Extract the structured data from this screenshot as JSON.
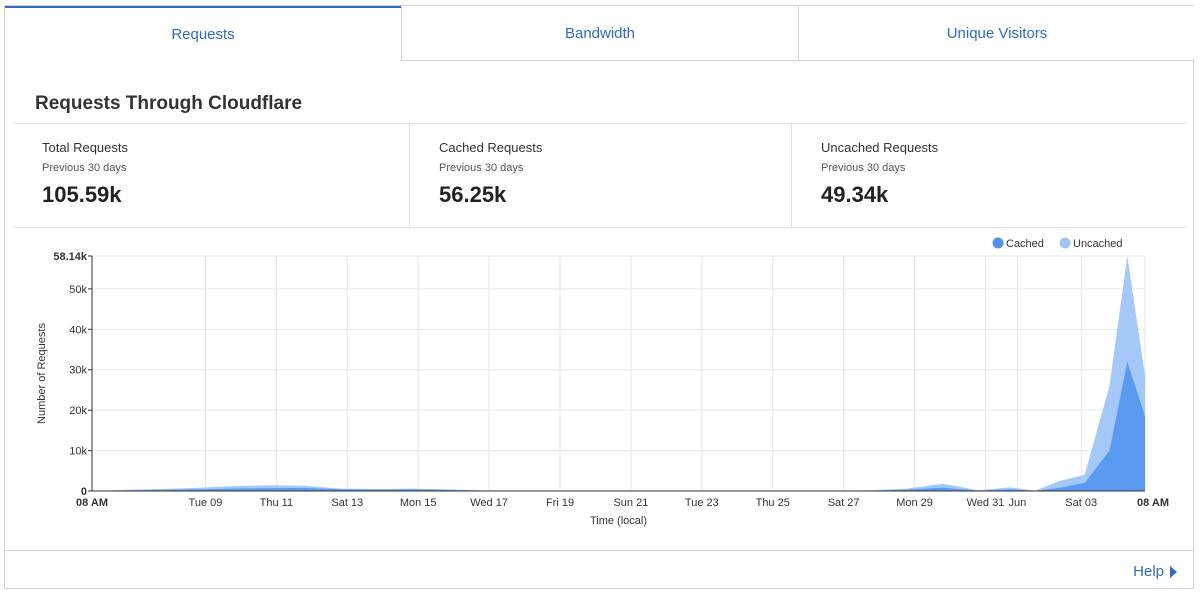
{
  "tabs": [
    {
      "label": "Requests",
      "active": true
    },
    {
      "label": "Bandwidth",
      "active": false
    },
    {
      "label": "Unique Visitors",
      "active": false
    }
  ],
  "section": {
    "title": "Requests Through Cloudflare"
  },
  "stats": [
    {
      "label": "Total Requests",
      "sub": "Previous 30 days",
      "value": "105.59k"
    },
    {
      "label": "Cached Requests",
      "sub": "Previous 30 days",
      "value": "56.25k"
    },
    {
      "label": "Uncached Requests",
      "sub": "Previous 30 days",
      "value": "49.34k"
    }
  ],
  "colors": {
    "accent": "#2f6bc1",
    "cached": "#4e92ee",
    "uncached": "#9fc5f8"
  },
  "chart_data": {
    "type": "area",
    "xlabel": "Time (local)",
    "ylabel": "Number of Requests",
    "ylim": [
      0,
      58140
    ],
    "y_ticks": [
      "0",
      "10k",
      "20k",
      "30k",
      "40k",
      "50k",
      "58.14k"
    ],
    "x_tick_labels": [
      "08 AM",
      "Tue 09",
      "Thu 11",
      "Sat 13",
      "Mon 15",
      "Wed 17",
      "Fri 19",
      "Sun 21",
      "Tue 23",
      "Thu 25",
      "Sat 27",
      "Mon 29",
      "Wed 31",
      "Jun",
      "Sat 03",
      "08 AM"
    ],
    "grid": true,
    "legend_position": "top-right",
    "series": [
      {
        "name": "Cached",
        "x": [
          0,
          1,
          2,
          3,
          4,
          5,
          6,
          7,
          8,
          9,
          10,
          11,
          12,
          13,
          14,
          15,
          16,
          17,
          18,
          19,
          20,
          21,
          22,
          23,
          24,
          25,
          25.9,
          26.6,
          27.3,
          28,
          28.7,
          29.2,
          29.7
        ],
        "values": [
          0,
          150,
          300,
          400,
          600,
          700,
          750,
          450,
          350,
          400,
          300,
          100,
          50,
          50,
          50,
          50,
          50,
          50,
          50,
          50,
          50,
          50,
          100,
          350,
          800,
          100,
          400,
          50,
          800,
          2000,
          10000,
          32000,
          18500
        ]
      },
      {
        "name": "Uncached",
        "x": [
          0,
          1,
          2,
          3,
          4,
          5,
          6,
          7,
          8,
          9,
          10,
          11,
          12,
          13,
          14,
          15,
          16,
          17,
          18,
          19,
          20,
          21,
          22,
          23,
          24,
          25,
          25.9,
          26.6,
          27.3,
          28,
          28.7,
          29.2,
          29.7
        ],
        "values": [
          0,
          300,
          500,
          800,
          1200,
          1400,
          1300,
          600,
          500,
          600,
          400,
          150,
          100,
          100,
          80,
          80,
          80,
          80,
          80,
          80,
          80,
          100,
          200,
          600,
          1800,
          200,
          900,
          100,
          2500,
          4000,
          26000,
          58140,
          28500
        ]
      }
    ]
  },
  "footer": {
    "help_label": "Help"
  }
}
